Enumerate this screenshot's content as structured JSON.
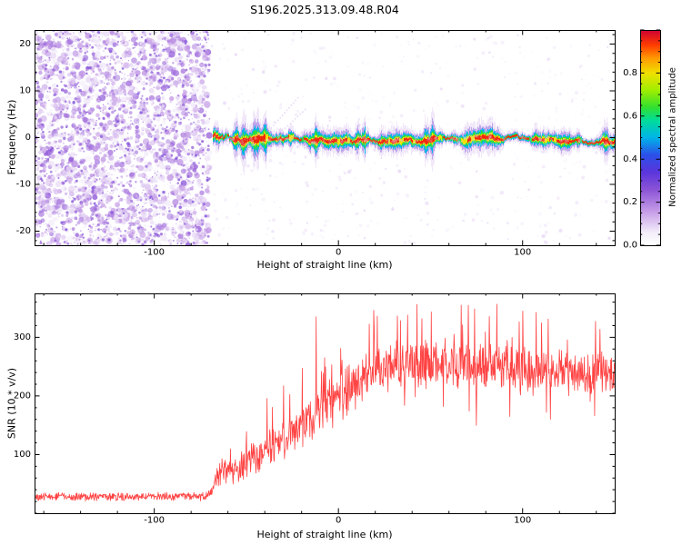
{
  "title": "S196.2025.313.09.48.R04",
  "colors": {
    "axis": "#000000",
    "snr_line": "#ff4343",
    "background": "#ffffff"
  },
  "chart_data": [
    {
      "type": "heatmap",
      "title": "",
      "xlabel": "Height of straight line (km)",
      "ylabel": "Frequency (Hz)",
      "xlim": [
        -165,
        150
      ],
      "ylim": [
        -23,
        23
      ],
      "xticks": [
        -100,
        0,
        100
      ],
      "yticks": [
        -20,
        -10,
        0,
        10,
        20
      ],
      "grid": false,
      "description": "Spectrogram: broadband purple speckle noise for heights below -70 km; narrow high-amplitude signal trace near 0 Hz from -68 km to 150 km with red core, yellow-green-cyan sheath and faint purple halo",
      "noise_region_x_end": -70,
      "signal": {
        "x_start": -68,
        "x_end": 150,
        "center_freq": -0.5,
        "core_amplitude": 1.0,
        "sheath_amplitudes": {
          "yellow": 0.8,
          "green": 0.63,
          "cyan": 0.5,
          "halo": 0.13
        }
      },
      "colorbar": {
        "label": "Normalized spectral amplitude",
        "range": [
          0,
          1
        ],
        "ticks": [
          0.0,
          0.2,
          0.4,
          0.6,
          0.8
        ],
        "stops": [
          [
            0.0,
            "#ffffff"
          ],
          [
            0.06,
            "#f3edfa"
          ],
          [
            0.16,
            "#c49ae6"
          ],
          [
            0.26,
            "#8a52d6"
          ],
          [
            0.34,
            "#5a35dc"
          ],
          [
            0.42,
            "#2b50e8"
          ],
          [
            0.5,
            "#00b4e8"
          ],
          [
            0.58,
            "#00dc9a"
          ],
          [
            0.64,
            "#30e030"
          ],
          [
            0.72,
            "#a0ee00"
          ],
          [
            0.8,
            "#f0e000"
          ],
          [
            0.87,
            "#ff9800"
          ],
          [
            0.93,
            "#ff3c00"
          ],
          [
            1.0,
            "#cc0033"
          ]
        ]
      }
    },
    {
      "type": "line",
      "title": "",
      "xlabel": "Height of straight line (km)",
      "ylabel": "SNR (10 * v/v)",
      "xlim": [
        -165,
        150
      ],
      "ylim": [
        0,
        375
      ],
      "xticks": [
        -100,
        0,
        100
      ],
      "yticks": [
        100,
        200,
        300
      ],
      "grid": false,
      "series": [
        {
          "name": "SNR",
          "color": "#ff4343",
          "x": [
            -165,
            -120,
            -75,
            -70,
            -66,
            -62,
            -58,
            -54,
            -50,
            -45,
            -40,
            -35,
            -30,
            -25,
            -20,
            -16,
            -12,
            -8,
            -4,
            0,
            5,
            10,
            15,
            20,
            25,
            30,
            40,
            50,
            60,
            70,
            80,
            90,
            100,
            110,
            120,
            130,
            140,
            150
          ],
          "mean": [
            28,
            28,
            28,
            33,
            55,
            75,
            65,
            75,
            88,
            98,
            105,
            115,
            125,
            135,
            148,
            158,
            168,
            178,
            190,
            200,
            212,
            222,
            232,
            242,
            248,
            250,
            252,
            255,
            255,
            252,
            250,
            250,
            248,
            246,
            245,
            244,
            244,
            243
          ],
          "noise": [
            7,
            7,
            7,
            10,
            20,
            25,
            22,
            25,
            25,
            28,
            28,
            30,
            30,
            32,
            35,
            36,
            38,
            38,
            40,
            40,
            40,
            40,
            40,
            42,
            42,
            42,
            40,
            40,
            40,
            40,
            40,
            40,
            40,
            38,
            38,
            38,
            38,
            38
          ],
          "spike": [
            45,
            45,
            48,
            70,
            110,
            130,
            110,
            130,
            150,
            175,
            195,
            205,
            225,
            235,
            255,
            320,
            335,
            300,
            290,
            300,
            310,
            320,
            330,
            350,
            355,
            360,
            365,
            370,
            365,
            360,
            360,
            355,
            350,
            345,
            340,
            335,
            330,
            330
          ],
          "up_spikes": [
            {
              "x": -12,
              "v": 335
            }
          ],
          "down_spikes": [
            {
              "x": 75,
              "v": 150
            },
            {
              "x": 93,
              "v": 165
            },
            {
              "x": 113,
              "v": 172
            }
          ]
        }
      ]
    }
  ]
}
